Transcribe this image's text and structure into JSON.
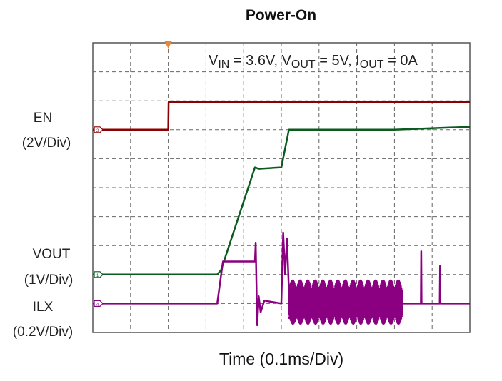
{
  "chart_data": {
    "type": "line",
    "title": "Power-On",
    "xlabel": "Time (0.1ms/Div)",
    "xlim_ms": [
      0,
      1.0
    ],
    "x_divisions": 10,
    "y_divisions": 10,
    "grid": true,
    "annotation": {
      "vin_label": "V",
      "vin_sub": "IN",
      "vin_val": " = 3.6V, ",
      "vout_label": "V",
      "vout_sub": "OUT",
      "vout_val": " = 5V, ",
      "iout_label": "I",
      "iout_sub": "OUT",
      "iout_val": " = 0A"
    },
    "trigger_marker_ms": 0.2,
    "series": [
      {
        "name": "EN",
        "scale": "(2V/Div)",
        "marker": "2",
        "color": "#8b0000",
        "volts_per_div": 2,
        "ref_div_from_top": 3,
        "points": [
          [
            0,
            0
          ],
          [
            0.2,
            0
          ],
          [
            0.201,
            1.9
          ],
          [
            1.0,
            1.9
          ]
        ]
      },
      {
        "name": "VOUT",
        "scale": "(1V/Div)",
        "marker": "1",
        "color": "#0b5a1e",
        "volts_per_div": 1,
        "ref_div_from_top": 8,
        "points": [
          [
            0,
            0
          ],
          [
            0.33,
            0
          ],
          [
            0.34,
            0.15
          ],
          [
            0.43,
            3.7
          ],
          [
            0.44,
            3.65
          ],
          [
            0.5,
            3.7
          ],
          [
            0.52,
            5.0
          ],
          [
            0.8,
            5.0
          ],
          [
            1.0,
            5.1
          ]
        ]
      },
      {
        "name": "ILX",
        "scale": "(0.2V/Div)",
        "marker": "4",
        "color": "#8b0080",
        "volts_per_div": 0.2,
        "ref_div_from_top": 9,
        "points": [
          [
            0,
            0
          ],
          [
            0.33,
            0
          ],
          [
            0.345,
            0.29
          ],
          [
            0.43,
            0.29
          ],
          [
            0.432,
            0.42
          ],
          [
            0.436,
            -0.15
          ],
          [
            0.44,
            0.05
          ],
          [
            0.445,
            -0.06
          ],
          [
            0.455,
            0.02
          ],
          [
            0.5,
            0
          ],
          [
            0.505,
            0.49
          ],
          [
            0.51,
            0.2
          ],
          [
            0.515,
            0.45
          ],
          [
            0.52,
            -0.1
          ],
          [
            0.82,
            0
          ],
          [
            0.87,
            0
          ],
          [
            0.871,
            0.36
          ],
          [
            0.872,
            0
          ],
          [
            0.92,
            0
          ],
          [
            0.921,
            0.26
          ],
          [
            0.922,
            0
          ],
          [
            1.0,
            0
          ]
        ],
        "switching_burst_ms": [
          0.52,
          0.82
        ],
        "switching_envelope_v": [
          -0.14,
          0.16
        ]
      }
    ]
  }
}
